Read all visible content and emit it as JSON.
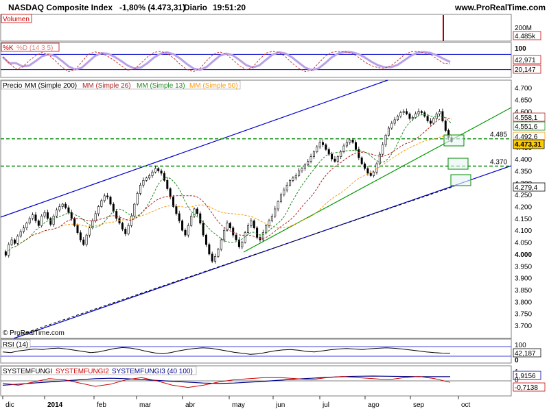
{
  "header": {
    "index_name": "NASDAQ Composite Index",
    "change": "-1,80% (4.473,31)",
    "period": "Diario",
    "time": "19:51:20",
    "site": "www.ProRealTime.com",
    "watermark": "© ProRealTime.com"
  },
  "chart_data": [
    {
      "type": "bar",
      "panel": "volume",
      "title": "Volumen",
      "tick_labels": [
        "200M"
      ],
      "last_label": "4.485k"
    },
    {
      "type": "line",
      "panel": "stochastic",
      "title_k": "%K",
      "title_d": "%D (14 3 5)",
      "ylim": [
        0,
        100
      ],
      "levels": [
        80,
        20
      ],
      "tick_labels": [
        "100"
      ],
      "last_k": "42,971",
      "last_d": "20,147",
      "k_values": [
        70,
        45,
        22,
        30,
        55,
        75,
        88,
        78,
        55,
        30,
        12,
        20,
        50,
        80,
        90,
        85,
        72,
        55,
        35,
        18,
        22,
        45,
        70,
        88,
        92,
        84,
        65,
        40,
        20,
        12,
        25,
        55,
        80,
        90,
        80,
        58,
        35,
        20,
        30,
        60,
        85,
        92,
        88,
        70,
        45,
        25,
        12,
        18,
        45,
        72,
        88,
        92,
        90,
        85,
        70,
        50,
        35,
        28,
        25,
        35,
        55,
        78,
        90,
        92,
        86,
        80,
        62,
        45,
        43
      ]
    },
    {
      "type": "candlestick",
      "panel": "price",
      "legend": [
        "Precio",
        "MM (Simple 200)",
        "MM (Simple 26)",
        "MM (Simple 13)",
        "MM (Simple 50)"
      ],
      "ylim": [
        3650,
        4750
      ],
      "y_ticks": [
        "4.700",
        "4.650",
        "4.600",
        "4.550",
        "4.500",
        "4.450",
        "4.400",
        "4.350",
        "4.300",
        "4.250",
        "4.200",
        "4.150",
        "4.100",
        "4.050",
        "4.000",
        "3.950",
        "3.900",
        "3.850",
        "3.800",
        "3.750",
        "3.700"
      ],
      "last_price": "4.473,31",
      "ma_labels": {
        "mm26": "4.558,1",
        "mm13": "4.551,6",
        "mm50": "4.492,6",
        "mm200": "4.279,4"
      },
      "levels": [
        {
          "value": 4485,
          "label": "4.485"
        },
        {
          "value": 4370,
          "label": "4.370"
        }
      ],
      "closes": [
        4010,
        3995,
        4040,
        4060,
        4045,
        4075,
        4095,
        4110,
        4130,
        4150,
        4165,
        4140,
        4120,
        4160,
        4175,
        4150,
        4125,
        4160,
        4185,
        4200,
        4210,
        4195,
        4175,
        4150,
        4120,
        4090,
        4060,
        4040,
        4080,
        4110,
        4140,
        4170,
        4200,
        4225,
        4245,
        4240,
        4210,
        4180,
        4150,
        4130,
        4105,
        4085,
        4120,
        4160,
        4210,
        4255,
        4290,
        4310,
        4320,
        4330,
        4345,
        4360,
        4350,
        4340,
        4310,
        4275,
        4240,
        4200,
        4170,
        4140,
        4100,
        4080,
        4120,
        4160,
        4190,
        4170,
        4130,
        4080,
        4040,
        4000,
        3970,
        3990,
        4020,
        4060,
        4100,
        4130,
        4110,
        4080,
        4060,
        4030,
        4050,
        4090,
        4120,
        4140,
        4110,
        4070,
        4060,
        4090,
        4120,
        4140,
        4160,
        4190,
        4220,
        4250,
        4270,
        4290,
        4310,
        4320,
        4330,
        4350,
        4360,
        4375,
        4390,
        4410,
        4430,
        4450,
        4470,
        4460,
        4440,
        4420,
        4400,
        4390,
        4410,
        4430,
        4455,
        4470,
        4480,
        4470,
        4440,
        4405,
        4380,
        4360,
        4340,
        4330,
        4345,
        4380,
        4420,
        4460,
        4500,
        4530,
        4550,
        4565,
        4580,
        4595,
        4600,
        4590,
        4570,
        4575,
        4590,
        4600,
        4595,
        4580,
        4560,
        4550,
        4570,
        4590,
        4600,
        4560,
        4520,
        4490,
        4473
      ],
      "month_labels": [
        "dic",
        "2014",
        "feb",
        "mar",
        "abr",
        "may",
        "jun",
        "jul",
        "ago",
        "sep",
        "oct"
      ]
    },
    {
      "type": "line",
      "panel": "rsi",
      "title": "RSI (14)",
      "last_label": "42,187",
      "tick_labels": [
        "100",
        "0"
      ],
      "values": [
        48,
        45,
        52,
        56,
        60,
        58,
        62,
        64,
        60,
        55,
        50,
        45,
        48,
        55,
        62,
        66,
        64,
        58,
        50,
        44,
        40,
        45,
        52,
        58,
        62,
        65,
        63,
        58,
        52,
        46,
        42,
        38,
        40,
        46,
        52,
        56,
        58,
        55,
        50,
        48,
        52,
        57,
        60,
        62,
        60,
        58,
        61,
        63,
        65,
        63,
        60,
        56,
        52,
        48,
        45,
        43,
        42
      ]
    },
    {
      "type": "line",
      "panel": "systemfungi",
      "series_names": [
        "SYSTEMFUNGI",
        "SYSTEMFUNGI2",
        "SYSTEMFUNGI3 (40 100)"
      ],
      "tick_labels": [
        "1",
        "0"
      ],
      "last_blue": "1,9156",
      "last_red": "-0,7138",
      "blue_values": [
        -2,
        -1.5,
        -1,
        -0.5,
        0,
        0.5,
        1,
        1.2,
        1,
        0.6,
        0.2,
        -0.2,
        -0.6,
        -1,
        -1.2,
        -1,
        -0.6,
        -0.2,
        0.3,
        0.8,
        1.2,
        1.6,
        1.9,
        2.1,
        2.2,
        2.1,
        2,
        1.9,
        1.9,
        1.9
      ],
      "red_values": [
        -1,
        -2,
        -0.5,
        1,
        0.5,
        -1,
        -2.5,
        -1.5,
        0.5,
        1.5,
        0,
        -2,
        -3,
        -2,
        -0.5,
        0.5,
        1,
        1.5,
        1.5,
        1,
        0.5,
        1.5,
        2,
        1.5,
        1,
        0.5,
        1.5,
        2,
        1,
        -0.7
      ]
    }
  ]
}
